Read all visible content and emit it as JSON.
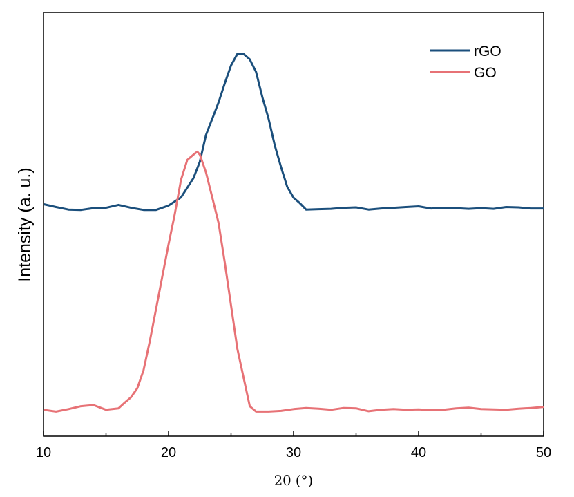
{
  "chart_data": {
    "type": "line",
    "xlabel": "2θ (°)",
    "ylabel": "Intensity (a. u.)",
    "xlim": [
      10,
      50
    ],
    "xticks": [
      10,
      20,
      30,
      40,
      50
    ],
    "ylim": [
      0,
      1
    ],
    "y_tick_labels": "none",
    "grid": false,
    "legend": "top-right",
    "series": [
      {
        "name": "rGO",
        "color": "#1b4f7c",
        "x": [
          10,
          11,
          12,
          13,
          14,
          15,
          16,
          17,
          18,
          19,
          20,
          21,
          22,
          22.5,
          23,
          23.5,
          24,
          24.5,
          25,
          25.5,
          26,
          26.5,
          27,
          27.5,
          28,
          28.5,
          29,
          29.5,
          30,
          30.5,
          31,
          32,
          33,
          34,
          35,
          36,
          37,
          38,
          39,
          40,
          41,
          42,
          43,
          44,
          45,
          46,
          47,
          48,
          49,
          50
        ],
        "values": [
          0.582,
          0.574,
          0.567,
          0.566,
          0.571,
          0.572,
          0.58,
          0.572,
          0.566,
          0.566,
          0.578,
          0.601,
          0.655,
          0.7,
          0.775,
          0.82,
          0.865,
          0.918,
          0.968,
          1.0,
          1.0,
          0.985,
          0.95,
          0.88,
          0.82,
          0.745,
          0.685,
          0.63,
          0.6,
          0.585,
          0.567,
          0.568,
          0.569,
          0.572,
          0.573,
          0.567,
          0.57,
          0.572,
          0.574,
          0.576,
          0.57,
          0.572,
          0.571,
          0.569,
          0.571,
          0.569,
          0.574,
          0.573,
          0.57,
          0.57
        ]
      },
      {
        "name": "GO",
        "color": "#e77276",
        "x": [
          10,
          11,
          12,
          13,
          14,
          15,
          16,
          16.5,
          17,
          17.5,
          18,
          18.5,
          19,
          19.5,
          20,
          20.5,
          21,
          21.5,
          22,
          22.3,
          22.5,
          23,
          23.5,
          24,
          24.5,
          25,
          25.5,
          26,
          26.5,
          27,
          28,
          29,
          30,
          31,
          32,
          33,
          34,
          35,
          36,
          37,
          38,
          39,
          40,
          41,
          42,
          43,
          44,
          45,
          46,
          47,
          48,
          49,
          50
        ],
        "values": [
          0.01,
          0.005,
          0.012,
          0.02,
          0.023,
          0.01,
          0.014,
          0.03,
          0.045,
          0.07,
          0.12,
          0.2,
          0.29,
          0.38,
          0.47,
          0.555,
          0.65,
          0.705,
          0.72,
          0.728,
          0.72,
          0.67,
          0.6,
          0.53,
          0.42,
          0.3,
          0.18,
          0.1,
          0.02,
          0.005,
          0.005,
          0.007,
          0.012,
          0.015,
          0.013,
          0.01,
          0.015,
          0.014,
          0.006,
          0.01,
          0.012,
          0.01,
          0.011,
          0.009,
          0.01,
          0.014,
          0.016,
          0.012,
          0.011,
          0.01,
          0.013,
          0.015,
          0.018
        ]
      }
    ]
  }
}
